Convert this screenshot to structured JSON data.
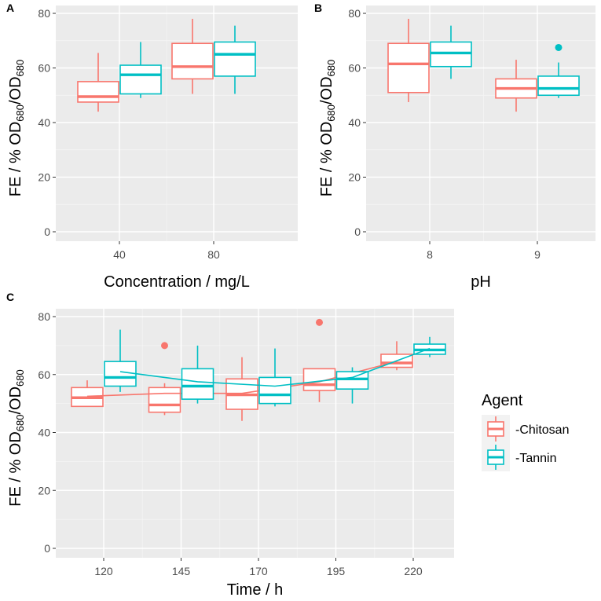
{
  "colors": {
    "chitosan": "#F8766D",
    "tannin": "#00BFC4",
    "panel": "#EBEBEB",
    "grid": "#FFFFFF"
  },
  "legend": {
    "title": "Agent",
    "items": [
      {
        "label": "-Chitosan",
        "color": "#F8766D"
      },
      {
        "label": "-Tannin",
        "color": "#00BFC4"
      }
    ]
  },
  "chart_data": [
    {
      "panel": "A",
      "type": "boxplot",
      "xlabel": "Concentration / mg/L",
      "ylabel": {
        "main": "FE / % OD",
        "sub1": "680",
        "slash": "/OD",
        "sub2": "680"
      },
      "categories": [
        "40",
        "80"
      ],
      "ylim": [
        0,
        80
      ],
      "yticks": [
        0,
        20,
        40,
        60,
        80
      ],
      "series": [
        {
          "name": "Chitosan",
          "boxes": [
            {
              "min": 44,
              "q1": 47.5,
              "median": 49.5,
              "q3": 55,
              "max": 65.5
            },
            {
              "min": 50.5,
              "q1": 56,
              "median": 60.5,
              "q3": 69,
              "max": 78
            }
          ]
        },
        {
          "name": "Tannin",
          "boxes": [
            {
              "min": 49,
              "q1": 50.5,
              "median": 57.5,
              "q3": 61,
              "max": 69.5
            },
            {
              "min": 50.5,
              "q1": 57,
              "median": 65,
              "q3": 69.5,
              "max": 75.5
            }
          ]
        }
      ]
    },
    {
      "panel": "B",
      "type": "boxplot",
      "xlabel": "pH",
      "ylabel": {
        "main": "FE / % OD",
        "sub1": "680",
        "slash": "/OD",
        "sub2": "680"
      },
      "categories": [
        "8",
        "9"
      ],
      "ylim": [
        0,
        80
      ],
      "yticks": [
        0,
        20,
        40,
        60,
        80
      ],
      "series": [
        {
          "name": "Chitosan",
          "boxes": [
            {
              "min": 47.5,
              "q1": 51,
              "median": 61.5,
              "q3": 69,
              "max": 78
            },
            {
              "min": 44,
              "q1": 49,
              "median": 52.5,
              "q3": 56,
              "max": 63
            }
          ]
        },
        {
          "name": "Tannin",
          "boxes": [
            {
              "min": 56,
              "q1": 60.5,
              "median": 65.5,
              "q3": 69.5,
              "max": 75.5
            },
            {
              "min": 49,
              "q1": 50,
              "median": 52.5,
              "q3": 57,
              "max": 62,
              "outliers": [
                67.5
              ]
            }
          ]
        }
      ]
    },
    {
      "panel": "C",
      "type": "boxplot",
      "xlabel": "Time / h",
      "ylabel": {
        "main": "FE / % OD",
        "sub1": "680",
        "slash": "/OD",
        "sub2": "680"
      },
      "categories": [
        "120",
        "145",
        "170",
        "195",
        "220"
      ],
      "ylim": [
        0,
        80
      ],
      "yticks": [
        0,
        20,
        40,
        60,
        80
      ],
      "series": [
        {
          "name": "Chitosan",
          "boxes": [
            {
              "min": 49,
              "q1": 49,
              "median": 52,
              "q3": 55.5,
              "max": 58
            },
            {
              "min": 46,
              "q1": 47,
              "median": 49.5,
              "q3": 55.5,
              "max": 57,
              "outliers": [
                70
              ]
            },
            {
              "min": 44,
              "q1": 48,
              "median": 53,
              "q3": 58.5,
              "max": 66
            },
            {
              "min": 50.5,
              "q1": 54.5,
              "median": 56.5,
              "q3": 62,
              "max": 62,
              "outliers": [
                78
              ]
            },
            {
              "min": 61.5,
              "q1": 62.5,
              "median": 64,
              "q3": 67,
              "max": 71.5
            }
          ],
          "trend": [
            52.5,
            53.5,
            53.5,
            57.5,
            64.5
          ]
        },
        {
          "name": "Tannin",
          "boxes": [
            {
              "min": 54,
              "q1": 56,
              "median": 59,
              "q3": 64.5,
              "max": 75.5
            },
            {
              "min": 50,
              "q1": 51.5,
              "median": 56,
              "q3": 62,
              "max": 70
            },
            {
              "min": 49,
              "q1": 50,
              "median": 53,
              "q3": 59,
              "max": 69
            },
            {
              "min": 50,
              "q1": 55,
              "median": 58.5,
              "q3": 61,
              "max": 62.5
            },
            {
              "min": 66,
              "q1": 67,
              "median": 68.5,
              "q3": 70.5,
              "max": 73
            }
          ],
          "trend": [
            61,
            57.5,
            56,
            59,
            69
          ]
        }
      ]
    }
  ]
}
